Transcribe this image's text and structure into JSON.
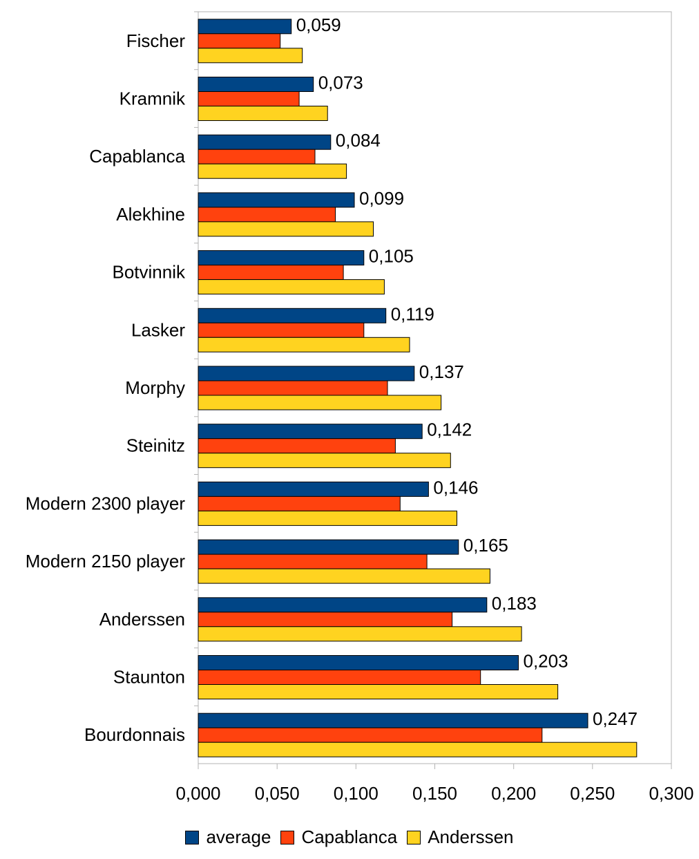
{
  "chart_data": {
    "type": "bar",
    "orientation": "horizontal",
    "categories": [
      "Fischer",
      "Kramnik",
      "Capablanca",
      "Alekhine",
      "Botvinnik",
      "Lasker",
      "Morphy",
      "Steinitz",
      "Modern 2300 player",
      "Modern 2150 player",
      "Anderssen",
      "Staunton",
      "Bourdonnais"
    ],
    "series": [
      {
        "name": "average",
        "color": "#004586",
        "values": [
          0.059,
          0.073,
          0.084,
          0.099,
          0.105,
          0.119,
          0.137,
          0.142,
          0.146,
          0.165,
          0.183,
          0.203,
          0.247
        ]
      },
      {
        "name": "Capablanca",
        "color": "#ff420e",
        "values": [
          0.052,
          0.064,
          0.074,
          0.087,
          0.092,
          0.105,
          0.12,
          0.125,
          0.128,
          0.145,
          0.161,
          0.179,
          0.218
        ]
      },
      {
        "name": "Anderssen",
        "color": "#ffd320",
        "values": [
          0.066,
          0.082,
          0.094,
          0.111,
          0.118,
          0.134,
          0.154,
          0.16,
          0.164,
          0.185,
          0.205,
          0.228,
          0.278
        ]
      }
    ],
    "data_labels": [
      "0,059",
      "0,073",
      "0,084",
      "0,099",
      "0,105",
      "0,119",
      "0,137",
      "0,142",
      "0,146",
      "0,165",
      "0,183",
      "0,203",
      "0,247"
    ],
    "xlim": [
      0,
      0.3
    ],
    "xticks": [
      "0,000",
      "0,050",
      "0,100",
      "0,150",
      "0,200",
      "0,250",
      "0,300"
    ],
    "title": "",
    "xlabel": "",
    "ylabel": "",
    "grid": false,
    "legend_position": "bottom"
  }
}
